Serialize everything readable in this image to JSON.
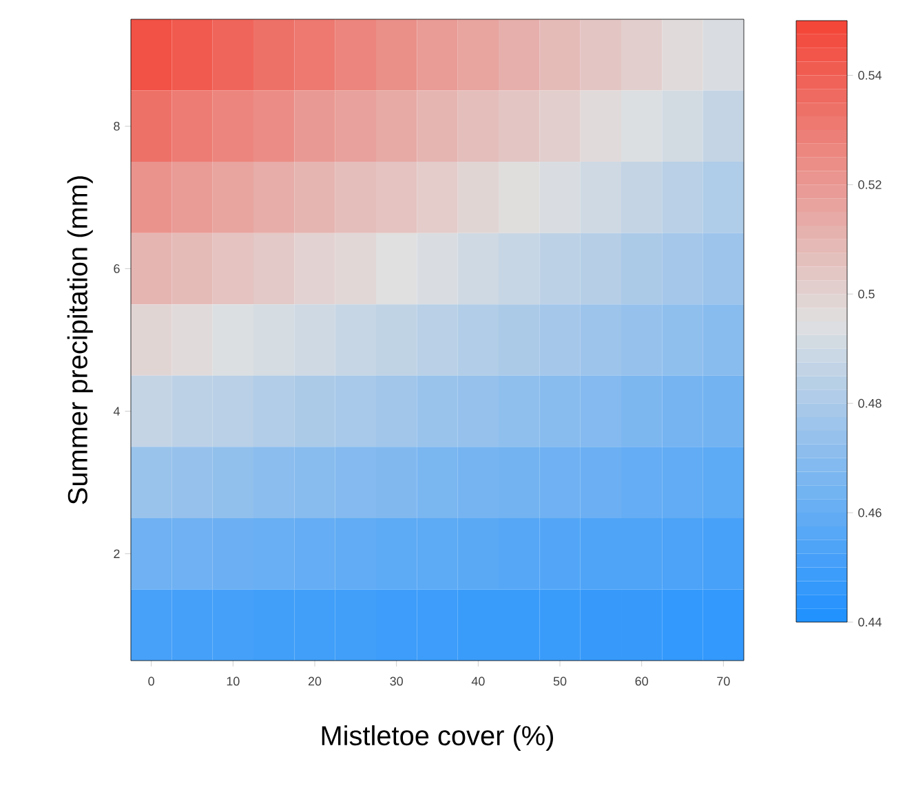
{
  "chart_data": {
    "type": "heatmap",
    "xlabel": "Mistletoe cover (%)",
    "ylabel": "Summer precipitation (mm)",
    "categories": [
      "0",
      null,
      "10",
      null,
      "20",
      null,
      "30",
      null,
      "40",
      null,
      "50",
      null,
      "60",
      null,
      "70"
    ],
    "y_categories": [
      null,
      "8",
      null,
      "6",
      null,
      "4",
      null,
      "2",
      null
    ],
    "clim": [
      0.44,
      0.55
    ],
    "cticks": [
      0.44,
      0.46,
      0.48,
      0.5,
      0.52,
      0.54
    ],
    "cells": [
      [
        0.545,
        0.542,
        0.538,
        0.534,
        0.531,
        0.527,
        0.523,
        0.519,
        0.516,
        0.512,
        0.508,
        0.504,
        0.501,
        0.497,
        0.493
      ],
      [
        0.534,
        0.53,
        0.527,
        0.524,
        0.52,
        0.517,
        0.514,
        0.51,
        0.507,
        0.504,
        0.501,
        0.497,
        0.494,
        0.491,
        0.487
      ],
      [
        0.522,
        0.519,
        0.516,
        0.513,
        0.51,
        0.507,
        0.505,
        0.502,
        0.499,
        0.496,
        0.493,
        0.49,
        0.487,
        0.484,
        0.481
      ],
      [
        0.51,
        0.508,
        0.505,
        0.503,
        0.5,
        0.498,
        0.495,
        0.493,
        0.49,
        0.488,
        0.485,
        0.483,
        0.48,
        0.478,
        0.476
      ],
      [
        0.499,
        0.497,
        0.494,
        0.492,
        0.49,
        0.488,
        0.486,
        0.484,
        0.482,
        0.48,
        0.478,
        0.476,
        0.474,
        0.472,
        0.47
      ],
      [
        0.487,
        0.485,
        0.484,
        0.482,
        0.48,
        0.479,
        0.477,
        0.475,
        0.474,
        0.472,
        0.47,
        0.469,
        0.467,
        0.465,
        0.464
      ],
      [
        0.475,
        0.474,
        0.473,
        0.471,
        0.47,
        0.469,
        0.468,
        0.466,
        0.465,
        0.464,
        0.463,
        0.462,
        0.46,
        0.459,
        0.458
      ],
      [
        0.463,
        0.463,
        0.462,
        0.461,
        0.46,
        0.459,
        0.458,
        0.458,
        0.457,
        0.456,
        0.455,
        0.454,
        0.454,
        0.453,
        0.452
      ],
      [
        0.452,
        0.451,
        0.451,
        0.45,
        0.45,
        0.45,
        0.449,
        0.449,
        0.448,
        0.448,
        0.448,
        0.447,
        0.447,
        0.446,
        0.446
      ]
    ]
  }
}
